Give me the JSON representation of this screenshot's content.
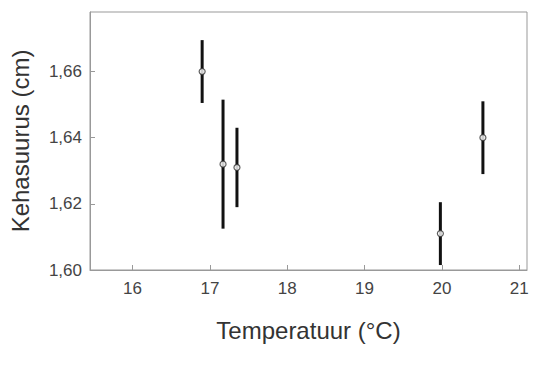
{
  "chart_data": {
    "type": "scatter",
    "x_label": "Temperatuur (°C)",
    "y_label": "Kehasuurus (cm)",
    "x": [
      16.9,
      17.17,
      17.35,
      19.98,
      20.53
    ],
    "values": [
      1.66,
      1.632,
      1.631,
      1.611,
      1.64
    ],
    "errors": [
      0.0095,
      0.0195,
      0.012,
      0.0095,
      0.011
    ],
    "color": "#333333",
    "marker": "circle",
    "xlim": [
      15.45,
      21.1
    ],
    "xticks": [
      16,
      17,
      18,
      19,
      20,
      21
    ],
    "ylim": [
      1.6,
      1.678
    ],
    "yticks": [
      {
        "value": 1.6,
        "label": "1,60"
      },
      {
        "value": 1.62,
        "label": "1,62"
      },
      {
        "value": 1.64,
        "label": "1,64"
      },
      {
        "value": 1.66,
        "label": "1,66"
      }
    ],
    "grid": false
  }
}
